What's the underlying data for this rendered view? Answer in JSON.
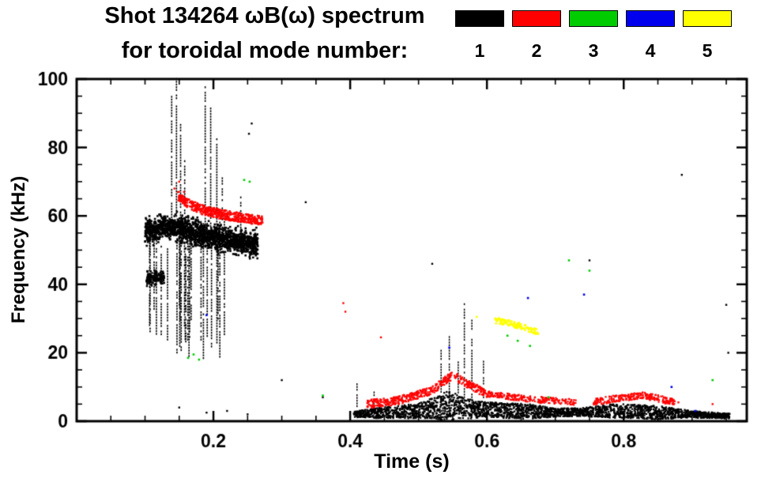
{
  "header": {
    "title_line1": "Shot 134264 ωB(ω) spectrum",
    "title_line2": "for toroidal mode number:"
  },
  "legend": {
    "position": "top-right",
    "items": [
      {
        "label": "1",
        "color": "#000000"
      },
      {
        "label": "2",
        "color": "#ff0000"
      },
      {
        "label": "3",
        "color": "#00cc00"
      },
      {
        "label": "4",
        "color": "#0000ee"
      },
      {
        "label": "5",
        "color": "#ffff00"
      }
    ]
  },
  "chart_data": {
    "type": "scatter",
    "title": "Shot 134264 ωB(ω) spectrum",
    "subtitle": "for toroidal mode number: 1 2 3 4 5",
    "xlabel": "Time (s)",
    "ylabel": "Frequency (kHz)",
    "xlim": [
      0,
      0.98
    ],
    "ylim": [
      0,
      100
    ],
    "xticks": [
      0.2,
      0.4,
      0.6,
      0.8
    ],
    "yticks": [
      0,
      20,
      40,
      60,
      80,
      100
    ],
    "xminor": 0.05,
    "yminor": 5,
    "grid": false,
    "series": [
      {
        "name": "n=1",
        "color": "#000000",
        "clusters": [
          {
            "kind": "blob",
            "t": [
              0.1,
              0.265
            ],
            "f": [
              [
                0.1,
                55
              ],
              [
                0.13,
                57
              ],
              [
                0.16,
                56
              ],
              [
                0.19,
                54
              ],
              [
                0.22,
                53
              ],
              [
                0.245,
                52
              ],
              [
                0.265,
                52
              ]
            ],
            "spread": 3.5,
            "n": 1700,
            "size": 2.6
          },
          {
            "kind": "blob",
            "t": [
              0.102,
              0.128
            ],
            "f": [
              [
                0.102,
                41.5
              ],
              [
                0.128,
                42.5
              ]
            ],
            "spread": 2.0,
            "n": 160,
            "size": 2.4
          },
          {
            "kind": "spikes",
            "t": [
              0.105,
              0.225
            ],
            "count": 26,
            "f_base": [
              18,
              36
            ],
            "f_top": [
              50,
              60
            ],
            "width": 1.6
          },
          {
            "kind": "spike_list",
            "width": 1.6,
            "spikes": [
              [
                0.139,
                58,
                95
              ],
              [
                0.146,
                60,
                100
              ],
              [
                0.152,
                57,
                87
              ],
              [
                0.158,
                56,
                76
              ],
              [
                0.188,
                56,
                98
              ],
              [
                0.196,
                57,
                92
              ],
              [
                0.205,
                56,
                83
              ],
              [
                0.213,
                55,
                71
              ],
              [
                0.24,
                55,
                66
              ]
            ]
          },
          {
            "kind": "band",
            "t": [
              0.405,
              0.955
            ],
            "f": [
              [
                0.405,
                2
              ],
              [
                0.5,
                3
              ],
              [
                0.545,
                4.5
              ],
              [
                0.58,
                3.5
              ],
              [
                0.7,
                2.5
              ],
              [
                0.8,
                3
              ],
              [
                0.9,
                2
              ],
              [
                0.955,
                1.5
              ]
            ],
            "h_path": [
              [
                0.405,
                0.8
              ],
              [
                0.44,
                1.5
              ],
              [
                0.5,
                2.2
              ],
              [
                0.53,
                3.5
              ],
              [
                0.545,
                4.8
              ],
              [
                0.56,
                3.2
              ],
              [
                0.6,
                2.2
              ],
              [
                0.66,
                2.2
              ],
              [
                0.7,
                1.2
              ],
              [
                0.74,
                1.2
              ],
              [
                0.78,
                2.0
              ],
              [
                0.85,
                2.0
              ],
              [
                0.9,
                1.0
              ],
              [
                0.955,
                0.7
              ]
            ],
            "n": 2600,
            "size": 2.3
          },
          {
            "kind": "spike_list",
            "width": 1.5,
            "spikes": [
              [
                0.41,
                2,
                11
              ],
              [
                0.435,
                2,
                9
              ],
              [
                0.533,
                3,
                21
              ],
              [
                0.545,
                3,
                27
              ],
              [
                0.558,
                6,
                18
              ],
              [
                0.567,
                3,
                35
              ],
              [
                0.578,
                3,
                30
              ],
              [
                0.595,
                3,
                18
              ]
            ]
          },
          {
            "kind": "dots",
            "size": 2.4,
            "pts": [
              [
                0.15,
                4
              ],
              [
                0.19,
                2.5
              ],
              [
                0.22,
                3
              ],
              [
                0.25,
                2
              ],
              [
                0.252,
                84
              ],
              [
                0.256,
                87
              ],
              [
                0.3,
                12
              ],
              [
                0.335,
                64
              ],
              [
                0.36,
                7
              ],
              [
                0.52,
                46
              ],
              [
                0.75,
                47
              ],
              [
                0.885,
                72
              ],
              [
                0.95,
                34
              ],
              [
                0.953,
                20
              ]
            ]
          }
        ]
      },
      {
        "name": "n=2",
        "color": "#ff0000",
        "clusters": [
          {
            "kind": "band",
            "t": [
              0.148,
              0.272
            ],
            "f": [
              [
                0.148,
                66
              ],
              [
                0.16,
                64
              ],
              [
                0.18,
                62
              ],
              [
                0.21,
                60.5
              ],
              [
                0.24,
                59.5
              ],
              [
                0.272,
                58.5
              ]
            ],
            "h": 1.4,
            "n": 520,
            "size": 2.3
          },
          {
            "kind": "band",
            "t": [
              0.425,
              0.6
            ],
            "f": [
              [
                0.425,
                5
              ],
              [
                0.47,
                6
              ],
              [
                0.52,
                9
              ],
              [
                0.55,
                13.5
              ],
              [
                0.57,
                11
              ],
              [
                0.6,
                8
              ]
            ],
            "h": 1.2,
            "n": 450,
            "size": 2.3
          },
          {
            "kind": "band",
            "t": [
              0.6,
              0.73
            ],
            "f": [
              [
                0.6,
                8
              ],
              [
                0.66,
                6.5
              ],
              [
                0.73,
                5.5
              ]
            ],
            "h": 0.9,
            "n": 240,
            "size": 2.2
          },
          {
            "kind": "band",
            "t": [
              0.755,
              0.875
            ],
            "f": [
              [
                0.755,
                5.5
              ],
              [
                0.8,
                7
              ],
              [
                0.83,
                7.5
              ],
              [
                0.875,
                5.5
              ]
            ],
            "h": 1.0,
            "n": 280,
            "size": 2.2
          },
          {
            "kind": "dots",
            "size": 2.4,
            "pts": [
              [
                0.143,
                68
              ],
              [
                0.15,
                70
              ],
              [
                0.157,
                67
              ],
              [
                0.39,
                34.5
              ],
              [
                0.393,
                32
              ],
              [
                0.445,
                24.5
              ],
              [
                0.88,
                5.5
              ],
              [
                0.93,
                5
              ]
            ]
          }
        ]
      },
      {
        "name": "n=3",
        "color": "#00cc00",
        "clusters": [
          {
            "kind": "dots",
            "size": 2.6,
            "pts": [
              [
                0.163,
                18.5
              ],
              [
                0.171,
                19.5
              ],
              [
                0.179,
                18
              ],
              [
                0.245,
                70.5
              ],
              [
                0.253,
                70
              ],
              [
                0.36,
                7.5
              ],
              [
                0.63,
                25
              ],
              [
                0.645,
                23.5
              ],
              [
                0.663,
                22
              ],
              [
                0.69,
                7
              ],
              [
                0.72,
                47
              ],
              [
                0.75,
                44
              ],
              [
                0.93,
                12
              ]
            ]
          }
        ]
      },
      {
        "name": "n=4",
        "color": "#0000ee",
        "clusters": [
          {
            "kind": "dots",
            "size": 2.6,
            "pts": [
              [
                0.19,
                31
              ],
              [
                0.545,
                21.5
              ],
              [
                0.66,
                36
              ],
              [
                0.742,
                37
              ],
              [
                0.87,
                10
              ],
              [
                0.905,
                3
              ]
            ]
          }
        ]
      },
      {
        "name": "n=5",
        "color": "#ffff00",
        "clusters": [
          {
            "kind": "band",
            "t": [
              0.612,
              0.675
            ],
            "f": [
              [
                0.612,
                29.5
              ],
              [
                0.645,
                28
              ],
              [
                0.675,
                26
              ]
            ],
            "h": 0.9,
            "n": 110,
            "size": 2.6
          },
          {
            "kind": "dots",
            "size": 2.6,
            "pts": [
              [
                0.585,
                30.5
              ]
            ]
          }
        ]
      }
    ]
  }
}
